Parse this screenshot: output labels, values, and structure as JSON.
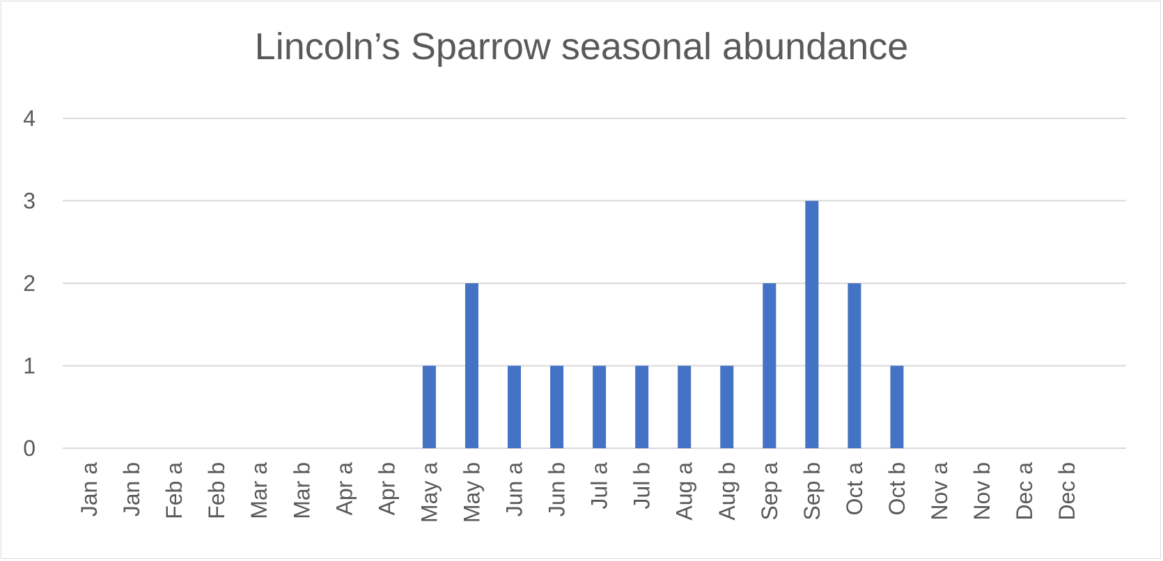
{
  "chart_data": {
    "type": "bar",
    "title": "Lincoln’s Sparrow seasonal abundance",
    "xlabel": "",
    "ylabel": "",
    "ylim": [
      0,
      4
    ],
    "yticks": [
      0,
      1,
      2,
      3,
      4
    ],
    "grid": true,
    "legend": "none",
    "bar_color": "#4472c4",
    "categories": [
      "Jan a",
      "Jan b",
      "Feb a",
      "Feb b",
      "Mar a",
      "Mar b",
      "Apr a",
      "Apr b",
      "May a",
      "May b",
      "Jun a",
      "Jun b",
      "Jul a",
      "Jul b",
      "Aug a",
      "Aug b",
      "Sep a",
      "Sep b",
      "Oct a",
      "Oct b",
      "Nov a",
      "Nov b",
      "Dec a",
      "Dec b"
    ],
    "values": [
      0,
      0,
      0,
      0,
      0,
      0,
      0,
      0,
      1,
      2,
      1,
      1,
      1,
      1,
      1,
      1,
      2,
      3,
      2,
      1,
      0,
      0,
      0,
      0
    ]
  }
}
